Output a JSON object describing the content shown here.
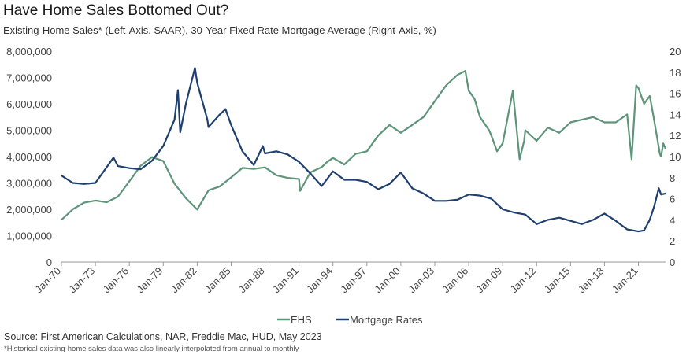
{
  "title": "Have Home Sales Bottomed Out?",
  "subtitle": "Existing-Home Sales* (Left-Axis, SAAR), 30-Year Fixed Rate Mortgage Average (Right-Axis, %)",
  "source": "Source: First American Calculations, NAR, Freddie Mac, HUD, May 2023",
  "note": "*Historical existing-home sales data was also linearly interpolated from annual to monthly",
  "chart_data": {
    "type": "line",
    "title": "Have Home Sales Bottomed Out?",
    "x_ticks": [
      "Jan-70",
      "Jan-73",
      "Jan-76",
      "Jan-79",
      "Jan-82",
      "Jan-85",
      "Jan-88",
      "Jan-91",
      "Jan-94",
      "Jan-97",
      "Jan-00",
      "Jan-03",
      "Jan-06",
      "Jan-09",
      "Jan-12",
      "Jan-15",
      "Jan-18",
      "Jan-21"
    ],
    "y_left": {
      "range": [
        0,
        8000000
      ],
      "ticks": [
        "0",
        "1,000,000",
        "2,000,000",
        "3,000,000",
        "4,000,000",
        "5,000,000",
        "6,000,000",
        "7,000,000",
        "8,000,000"
      ]
    },
    "y_right": {
      "range": [
        0,
        20
      ],
      "ticks": [
        "0",
        "2",
        "4",
        "6",
        "8",
        "10",
        "12",
        "14",
        "16",
        "18",
        "20"
      ]
    },
    "x_range": [
      1970,
      2023.4
    ],
    "legend": "bottom-center",
    "series": [
      {
        "name": "EHS",
        "axis": "left",
        "color": "#5e9479",
        "points": [
          [
            1970,
            1.6
          ],
          [
            1971,
            2.0
          ],
          [
            1972,
            2.25
          ],
          [
            1973,
            2.33
          ],
          [
            1974,
            2.27
          ],
          [
            1975,
            2.48
          ],
          [
            1976,
            3.06
          ],
          [
            1977,
            3.65
          ],
          [
            1978,
            3.98
          ],
          [
            1979,
            3.83
          ],
          [
            1980,
            2.97
          ],
          [
            1981,
            2.42
          ],
          [
            1982,
            1.99
          ],
          [
            1983,
            2.72
          ],
          [
            1984,
            2.87
          ],
          [
            1985,
            3.21
          ],
          [
            1986,
            3.57
          ],
          [
            1987,
            3.53
          ],
          [
            1988,
            3.59
          ],
          [
            1989,
            3.29
          ],
          [
            1990,
            3.19
          ],
          [
            1991,
            3.15
          ],
          [
            1991.1,
            2.7
          ],
          [
            1992,
            3.4
          ],
          [
            1993,
            3.6
          ],
          [
            1993.5,
            3.8
          ],
          [
            1994,
            3.95
          ],
          [
            1995,
            3.7
          ],
          [
            1996,
            4.1
          ],
          [
            1997,
            4.2
          ],
          [
            1998,
            4.8
          ],
          [
            1999,
            5.2
          ],
          [
            2000,
            4.9
          ],
          [
            2001,
            5.2
          ],
          [
            2002,
            5.5
          ],
          [
            2003,
            6.1
          ],
          [
            2004,
            6.7
          ],
          [
            2005,
            7.1
          ],
          [
            2005.7,
            7.25
          ],
          [
            2006,
            6.5
          ],
          [
            2006.5,
            6.2
          ],
          [
            2007,
            5.5
          ],
          [
            2007.8,
            5.0
          ],
          [
            2008,
            4.8
          ],
          [
            2008.5,
            4.2
          ],
          [
            2009,
            4.5
          ],
          [
            2009.9,
            6.5
          ],
          [
            2010.5,
            3.9
          ],
          [
            2010.9,
            4.6
          ],
          [
            2011,
            5.0
          ],
          [
            2012,
            4.6
          ],
          [
            2013,
            5.1
          ],
          [
            2014,
            4.9
          ],
          [
            2015,
            5.3
          ],
          [
            2016,
            5.4
          ],
          [
            2017,
            5.5
          ],
          [
            2018,
            5.3
          ],
          [
            2019,
            5.3
          ],
          [
            2020,
            5.6
          ],
          [
            2020.4,
            3.9
          ],
          [
            2020.8,
            6.7
          ],
          [
            2021,
            6.6
          ],
          [
            2021.5,
            6.0
          ],
          [
            2022,
            6.3
          ],
          [
            2022.3,
            5.6
          ],
          [
            2022.9,
            4.1
          ],
          [
            2023,
            4.0
          ],
          [
            2023.2,
            4.5
          ],
          [
            2023.4,
            4.3
          ]
        ]
      },
      {
        "name": "Mortgage Rates",
        "axis": "right",
        "color": "#1f3f6e",
        "points": [
          [
            1970,
            8.2
          ],
          [
            1971,
            7.5
          ],
          [
            1972,
            7.4
          ],
          [
            1973,
            7.5
          ],
          [
            1974,
            9.0
          ],
          [
            1974.6,
            9.9
          ],
          [
            1975,
            9.1
          ],
          [
            1976,
            8.9
          ],
          [
            1977,
            8.8
          ],
          [
            1978,
            9.6
          ],
          [
            1979,
            11.0
          ],
          [
            1980,
            13.5
          ],
          [
            1980.3,
            16.3
          ],
          [
            1980.5,
            12.3
          ],
          [
            1981,
            15
          ],
          [
            1981.8,
            18.4
          ],
          [
            1982,
            17
          ],
          [
            1982.9,
            13.5
          ],
          [
            1983,
            12.8
          ],
          [
            1984,
            14
          ],
          [
            1984.5,
            14.5
          ],
          [
            1985,
            13
          ],
          [
            1986,
            10.5
          ],
          [
            1987,
            9.2
          ],
          [
            1987.8,
            11
          ],
          [
            1988,
            10.3
          ],
          [
            1989,
            10.5
          ],
          [
            1990,
            10.2
          ],
          [
            1991,
            9.5
          ],
          [
            1992,
            8.4
          ],
          [
            1993,
            7.2
          ],
          [
            1994,
            8.6
          ],
          [
            1995,
            7.8
          ],
          [
            1996,
            7.8
          ],
          [
            1997,
            7.6
          ],
          [
            1998,
            6.9
          ],
          [
            1999,
            7.4
          ],
          [
            2000,
            8.5
          ],
          [
            2001,
            7.0
          ],
          [
            2002,
            6.5
          ],
          [
            2003,
            5.8
          ],
          [
            2004,
            5.8
          ],
          [
            2005,
            5.9
          ],
          [
            2006,
            6.4
          ],
          [
            2007,
            6.3
          ],
          [
            2008,
            6.0
          ],
          [
            2009,
            5.0
          ],
          [
            2010,
            4.7
          ],
          [
            2011,
            4.5
          ],
          [
            2012,
            3.6
          ],
          [
            2013,
            4.0
          ],
          [
            2014,
            4.2
          ],
          [
            2015,
            3.9
          ],
          [
            2016,
            3.6
          ],
          [
            2017,
            4.0
          ],
          [
            2018,
            4.6
          ],
          [
            2019,
            3.9
          ],
          [
            2020,
            3.1
          ],
          [
            2021,
            2.9
          ],
          [
            2021.5,
            3.0
          ],
          [
            2022,
            4.0
          ],
          [
            2022.4,
            5.3
          ],
          [
            2022.8,
            7.0
          ],
          [
            2023,
            6.4
          ],
          [
            2023.4,
            6.5
          ]
        ]
      }
    ]
  }
}
